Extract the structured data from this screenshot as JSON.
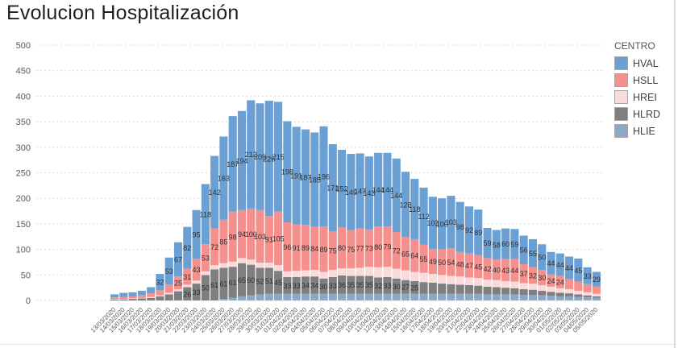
{
  "page": {
    "title": "Evolucion Hospitalización"
  },
  "legend": {
    "title": "CENTRO"
  },
  "chart_data": {
    "type": "bar",
    "stacked": true,
    "title": "Evolucion Hospitalización",
    "ylabel": "",
    "xlabel": "",
    "ylim": [
      0,
      500
    ],
    "yticks": [
      0,
      50,
      100,
      150,
      200,
      250,
      300,
      350,
      400,
      450,
      500
    ],
    "grid": "horizontal-dashed",
    "legend_position": "right",
    "label_min_value": 24,
    "x_label_rotation": 45,
    "stack_order_bottom_to_top": [
      "HLIE",
      "HLRD",
      "HREI",
      "HSLL",
      "HVAL"
    ],
    "x": [
      "13/03/2020",
      "14/03/2020",
      "15/03/2020",
      "16/03/2020",
      "17/03/2020",
      "18/03/2020",
      "19/03/2020",
      "20/03/2020",
      "21/03/2020",
      "22/03/2020",
      "23/03/2020",
      "24/03/2020",
      "25/03/2020",
      "26/03/2020",
      "27/03/2020",
      "28/03/2020",
      "29/03/2020",
      "30/03/2020",
      "31/03/2020",
      "01/04/2020",
      "02/04/2020",
      "03/04/2020",
      "04/04/2020",
      "05/04/2020",
      "06/04/2020",
      "07/04/2020",
      "08/04/2020",
      "09/04/2020",
      "10/04/2020",
      "11/04/2020",
      "12/04/2020",
      "13/04/2020",
      "14/04/2020",
      "15/04/2020",
      "16/04/2020",
      "17/04/2020",
      "18/04/2020",
      "19/04/2020",
      "20/04/2020",
      "21/04/2020",
      "22/04/2020",
      "23/04/2020",
      "24/04/2020",
      "25/04/2020",
      "26/04/2020",
      "27/04/2020",
      "28/04/2020",
      "29/04/2020",
      "30/04/2020",
      "01/05/2020",
      "02/05/2020",
      "03/05/2020",
      "04/05/2020",
      "05/05/2020"
    ],
    "series": [
      {
        "name": "HVAL",
        "color": "#6BA0D4",
        "values": [
          6,
          8,
          8,
          9,
          12,
          32,
          53,
          67,
          82,
          95,
          118,
          142,
          163,
          187,
          194,
          212,
          209,
          226,
          215,
          198,
          191,
          187,
          185,
          196,
          171,
          152,
          149,
          147,
          143,
          144,
          144,
          144,
          128,
          118,
          112,
          102,
          100,
          103,
          98,
          92,
          89,
          59,
          58,
          60,
          59,
          56,
          55,
          50,
          44,
          44,
          44,
          45,
          33,
          29
        ]
      },
      {
        "name": "HSLL",
        "color": "#F5908D",
        "values": [
          3,
          4,
          4,
          5,
          7,
          10,
          16,
          25,
          31,
          43,
          53,
          72,
          85,
          98,
          94,
          100,
          103,
          91,
          105,
          96,
          91,
          89,
          84,
          89,
          75,
          80,
          75,
          77,
          73,
          80,
          79,
          72,
          65,
          64,
          55,
          49,
          50,
          54,
          48,
          47,
          45,
          42,
          40,
          43,
          44,
          37,
          32,
          30,
          24,
          24,
          20,
          18,
          16,
          14
        ]
      },
      {
        "name": "HREI",
        "color": "#FADBDB",
        "values": [
          1,
          1,
          1,
          1,
          2,
          2,
          3,
          4,
          5,
          6,
          7,
          8,
          9,
          10,
          10,
          10,
          10,
          10,
          11,
          11,
          12,
          12,
          13,
          13,
          14,
          14,
          15,
          16,
          18,
          20,
          20,
          19,
          19,
          18,
          18,
          17,
          17,
          16,
          16,
          15,
          15,
          14,
          14,
          13,
          13,
          12,
          12,
          11,
          10,
          9,
          8,
          7,
          6,
          5
        ]
      },
      {
        "name": "HLRD",
        "color": "#7F7F7F",
        "values": [
          2,
          2,
          3,
          4,
          5,
          8,
          12,
          18,
          26,
          33,
          50,
          61,
          61,
          61,
          65,
          60,
          52,
          51,
          45,
          33,
          33,
          34,
          34,
          30,
          33,
          36,
          35,
          35,
          35,
          32,
          33,
          30,
          27,
          25,
          23,
          22,
          20,
          19,
          18,
          17,
          16,
          15,
          14,
          13,
          12,
          11,
          10,
          9,
          8,
          7,
          6,
          5,
          4,
          3
        ]
      },
      {
        "name": "HLIE",
        "color": "#8CA8C5",
        "values": [
          0,
          0,
          0,
          0,
          0,
          0,
          0,
          0,
          0,
          0,
          0,
          0,
          3,
          5,
          8,
          10,
          12,
          13,
          13,
          13,
          13,
          13,
          13,
          13,
          13,
          13,
          13,
          13,
          13,
          13,
          13,
          13,
          13,
          13,
          13,
          13,
          13,
          13,
          13,
          13,
          13,
          12,
          12,
          12,
          12,
          11,
          11,
          10,
          9,
          8,
          8,
          7,
          6,
          5
        ]
      }
    ]
  }
}
